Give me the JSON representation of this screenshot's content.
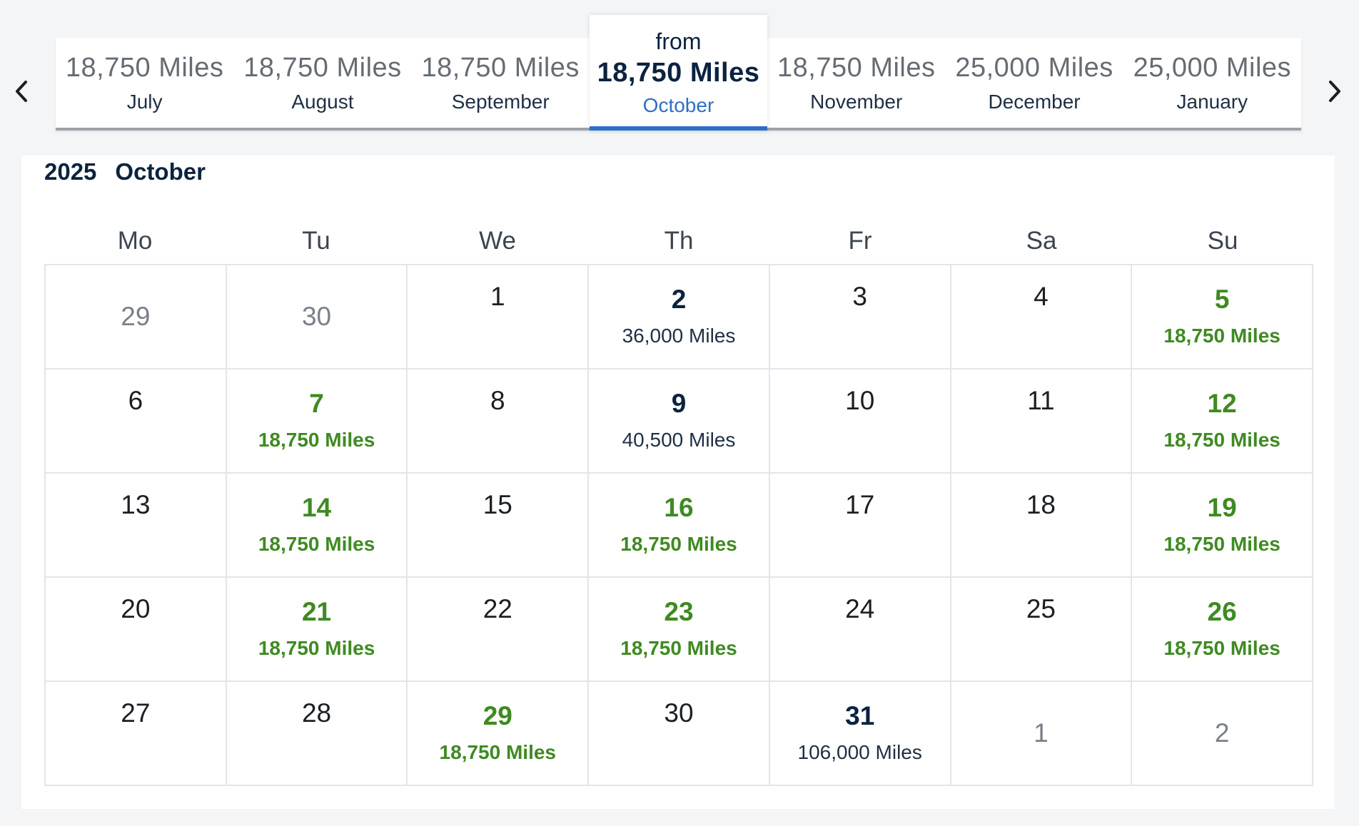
{
  "strip": {
    "prev_label": "Previous months",
    "next_label": "Next months",
    "months": [
      {
        "name": "July",
        "price": "18,750 Miles",
        "active": false
      },
      {
        "name": "August",
        "price": "18,750 Miles",
        "active": false
      },
      {
        "name": "September",
        "price": "18,750 Miles",
        "active": false
      },
      {
        "name": "October",
        "price": "18,750 Miles",
        "active": true,
        "prefix": "from"
      },
      {
        "name": "November",
        "price": "18,750 Miles",
        "active": false
      },
      {
        "name": "December",
        "price": "25,000 Miles",
        "active": false
      },
      {
        "name": "January",
        "price": "25,000 Miles",
        "active": false
      }
    ]
  },
  "calendar": {
    "year": "2025",
    "month": "October",
    "weekdays": [
      "Mo",
      "Tu",
      "We",
      "Th",
      "Fr",
      "Sa",
      "Su"
    ],
    "days": [
      {
        "day": "29",
        "other": true
      },
      {
        "day": "30",
        "other": true
      },
      {
        "day": "1"
      },
      {
        "day": "2",
        "miles": "36,000 Miles",
        "tier": "high"
      },
      {
        "day": "3"
      },
      {
        "day": "4"
      },
      {
        "day": "5",
        "miles": "18,750 Miles",
        "tier": "low"
      },
      {
        "day": "6"
      },
      {
        "day": "7",
        "miles": "18,750 Miles",
        "tier": "low"
      },
      {
        "day": "8"
      },
      {
        "day": "9",
        "miles": "40,500 Miles",
        "tier": "high"
      },
      {
        "day": "10"
      },
      {
        "day": "11"
      },
      {
        "day": "12",
        "miles": "18,750 Miles",
        "tier": "low"
      },
      {
        "day": "13"
      },
      {
        "day": "14",
        "miles": "18,750 Miles",
        "tier": "low"
      },
      {
        "day": "15"
      },
      {
        "day": "16",
        "miles": "18,750 Miles",
        "tier": "low"
      },
      {
        "day": "17"
      },
      {
        "day": "18"
      },
      {
        "day": "19",
        "miles": "18,750 Miles",
        "tier": "low"
      },
      {
        "day": "20"
      },
      {
        "day": "21",
        "miles": "18,750 Miles",
        "tier": "low"
      },
      {
        "day": "22"
      },
      {
        "day": "23",
        "miles": "18,750 Miles",
        "tier": "low"
      },
      {
        "day": "24"
      },
      {
        "day": "25"
      },
      {
        "day": "26",
        "miles": "18,750 Miles",
        "tier": "low"
      },
      {
        "day": "27"
      },
      {
        "day": "28"
      },
      {
        "day": "29",
        "miles": "18,750 Miles",
        "tier": "low"
      },
      {
        "day": "30"
      },
      {
        "day": "31",
        "miles": "106,000 Miles",
        "tier": "high"
      },
      {
        "day": "1",
        "other": true
      },
      {
        "day": "2",
        "other": true
      }
    ]
  },
  "colors": {
    "low_price": "#3f8a22",
    "high_price": "#0b2240",
    "accent": "#2f6fc4"
  }
}
